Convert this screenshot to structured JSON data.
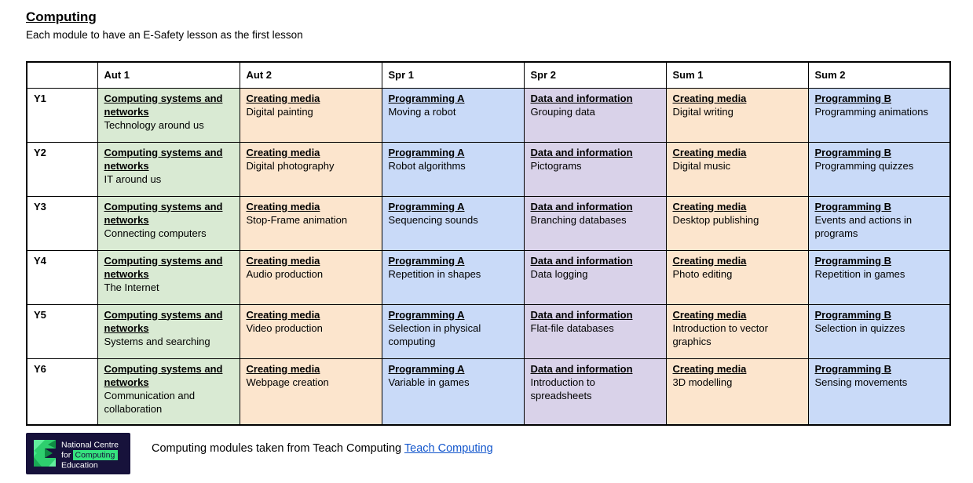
{
  "page": {
    "title": "Computing",
    "subtitle": "Each module to have an E-Safety lesson as the first lesson"
  },
  "colors": {
    "green": "#d9ead3",
    "peach": "#fce5cd",
    "blue": "#c9daf8",
    "purple": "#d9d2e9",
    "link": "#1155cc",
    "logo_bg": "#17123b",
    "logo_green": "#2ecf6e",
    "logo_green_light": "#62ef9e",
    "logo_green_dark": "#0f8c44",
    "logo_highlight": "#35e27e"
  },
  "table": {
    "columns": [
      "",
      "Aut 1",
      "Aut 2",
      "Spr 1",
      "Spr 2",
      "Sum 1",
      "Sum 2"
    ],
    "rows": [
      {
        "year": "Y1",
        "cells": [
          {
            "strand": "Computing systems and networks",
            "unit": "Technology around us",
            "color": "green"
          },
          {
            "strand": "Creating media",
            "unit": "Digital painting",
            "color": "peach"
          },
          {
            "strand": "Programming A",
            "unit": "Moving a robot",
            "color": "blue"
          },
          {
            "strand": "Data and information",
            "unit": "Grouping data",
            "color": "purple"
          },
          {
            "strand": "Creating media",
            "unit": "Digital writing",
            "color": "peach"
          },
          {
            "strand": "Programming B",
            "unit": "Programming animations",
            "color": "blue"
          }
        ]
      },
      {
        "year": "Y2",
        "cells": [
          {
            "strand": "Computing systems and networks",
            "unit": "IT around us",
            "color": "green"
          },
          {
            "strand": "Creating media",
            "unit": "Digital photography",
            "color": "peach"
          },
          {
            "strand": "Programming A",
            "unit": "Robot algorithms",
            "color": "blue"
          },
          {
            "strand": "Data and information",
            "unit": "Pictograms",
            "color": "purple"
          },
          {
            "strand": "Creating media",
            "unit": "Digital music",
            "color": "peach"
          },
          {
            "strand": "Programming B",
            "unit": "Programming quizzes",
            "color": "blue"
          }
        ]
      },
      {
        "year": "Y3",
        "cells": [
          {
            "strand": "Computing systems and networks",
            "unit": "Connecting computers",
            "color": "green"
          },
          {
            "strand": "Creating media",
            "unit": "Stop-Frame animation",
            "color": "peach"
          },
          {
            "strand": "Programming A",
            "unit": "Sequencing sounds",
            "color": "blue"
          },
          {
            "strand": "Data and information",
            "unit": "Branching databases",
            "color": "purple"
          },
          {
            "strand": "Creating media",
            "unit": "Desktop publishing",
            "color": "peach"
          },
          {
            "strand": "Programming B",
            "unit": "Events and actions in programs",
            "color": "blue"
          }
        ]
      },
      {
        "year": "Y4",
        "cells": [
          {
            "strand": "Computing systems and networks",
            "unit": "The Internet",
            "color": "green"
          },
          {
            "strand": "Creating media",
            "unit": "Audio production",
            "color": "peach"
          },
          {
            "strand": "Programming A",
            "unit": "Repetition in shapes",
            "color": "blue"
          },
          {
            "strand": "Data and information",
            "unit": "Data logging",
            "color": "purple"
          },
          {
            "strand": "Creating media",
            "unit": "Photo editing",
            "color": "peach"
          },
          {
            "strand": "Programming B",
            "unit": "Repetition in games",
            "color": "blue"
          }
        ]
      },
      {
        "year": "Y5",
        "cells": [
          {
            "strand": "Computing systems and networks",
            "unit": "Systems and searching",
            "color": "green"
          },
          {
            "strand": "Creating media",
            "unit": "Video production",
            "color": "peach"
          },
          {
            "strand": "Programming A",
            "unit": "Selection in physical computing",
            "color": "blue"
          },
          {
            "strand": "Data and information",
            "unit": "Flat-file databases",
            "color": "purple"
          },
          {
            "strand": "Creating media",
            "unit": "Introduction to vector graphics",
            "color": "peach"
          },
          {
            "strand": "Programming B",
            "unit": "Selection in quizzes",
            "color": "blue"
          }
        ]
      },
      {
        "year": "Y6",
        "cells": [
          {
            "strand": "Computing systems and networks",
            "unit": "Communication and collaboration",
            "color": "green"
          },
          {
            "strand": "Creating media",
            "unit": "Webpage creation",
            "color": "peach"
          },
          {
            "strand": "Programming A",
            "unit": "Variable in games",
            "color": "blue"
          },
          {
            "strand": "Data and information",
            "unit": "Introduction to spreadsheets",
            "color": "purple"
          },
          {
            "strand": "Creating media",
            "unit": "3D modelling",
            "color": "peach"
          },
          {
            "strand": "Programming B",
            "unit": "Sensing movements",
            "color": "blue"
          }
        ]
      }
    ]
  },
  "footer": {
    "logo": {
      "line1": "National Centre",
      "line2_prefix": "for",
      "line2_highlight": "Computing",
      "line3": "Education"
    },
    "text": "Computing modules taken from Teach Computing ",
    "link_label": "Teach Computing"
  }
}
